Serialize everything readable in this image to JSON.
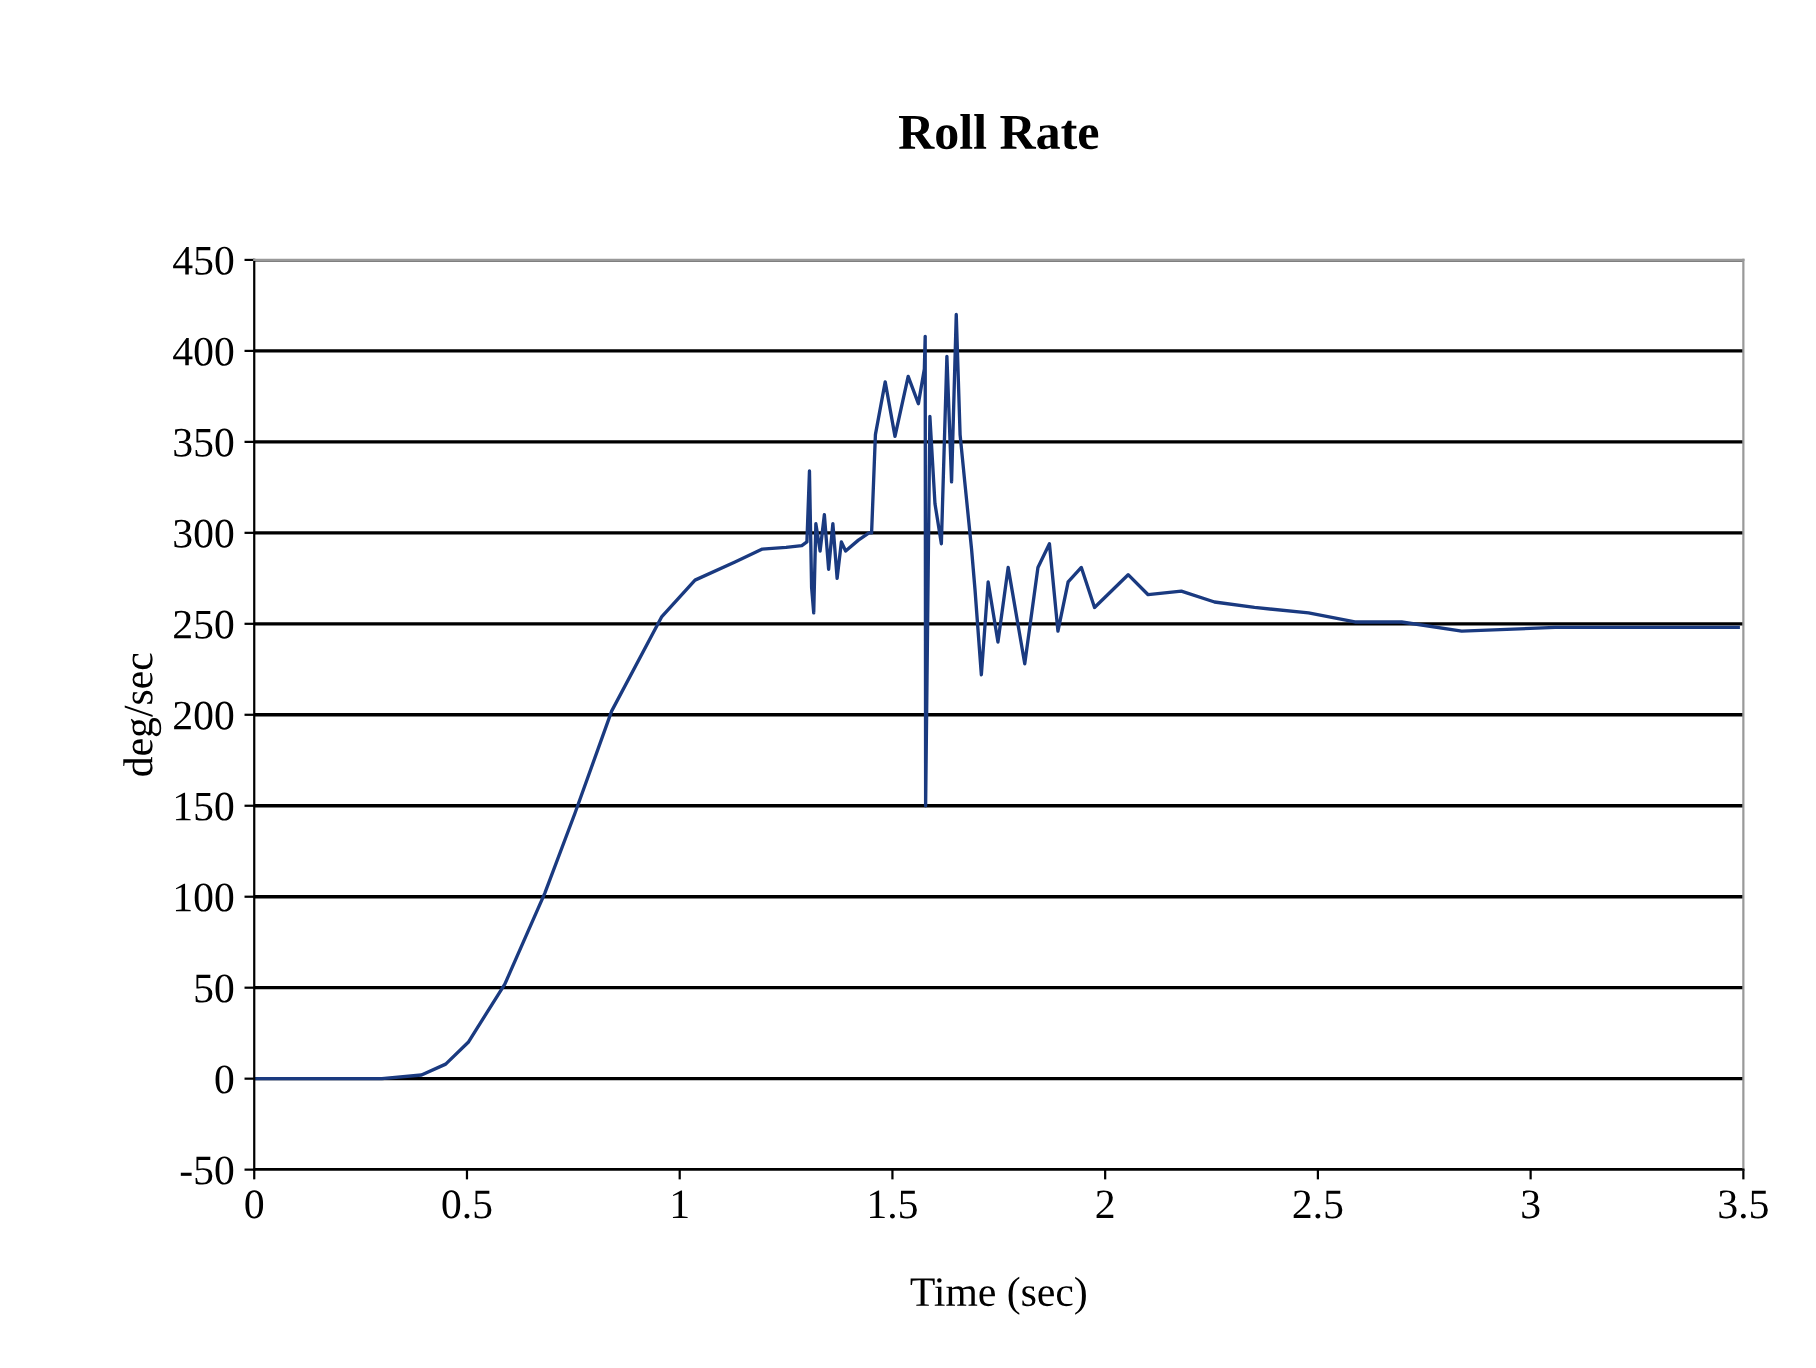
{
  "chart_data": {
    "type": "line",
    "title": "Roll Rate",
    "xlabel": "Time (sec)",
    "ylabel": "deg/sec",
    "xlim": [
      0,
      3.5
    ],
    "xticks": [
      0,
      0.5,
      1,
      1.5,
      2,
      2.5,
      3,
      3.5
    ],
    "ylim": [
      -50,
      450
    ],
    "yticks": [
      -50,
      0,
      50,
      100,
      150,
      200,
      250,
      300,
      350,
      400,
      450
    ],
    "grid": "y",
    "marker": "none",
    "line_style": "solid",
    "series": [
      {
        "color": "#1a3a80",
        "x": [
          0,
          0.1,
          0.2,
          0.3,
          0.393,
          0.45,
          0.503,
          0.589,
          0.683,
          0.754,
          0.84,
          0.958,
          1.036,
          1.13,
          1.193,
          1.25,
          1.287,
          1.299,
          1.305,
          1.31,
          1.315,
          1.32,
          1.33,
          1.34,
          1.35,
          1.36,
          1.37,
          1.38,
          1.39,
          1.42,
          1.445,
          1.451,
          1.46,
          1.483,
          1.506,
          1.537,
          1.561,
          1.575,
          1.577,
          1.578,
          1.588,
          1.6,
          1.615,
          1.628,
          1.639,
          1.65,
          1.659,
          1.67,
          1.686,
          1.694,
          1.709,
          1.725,
          1.748,
          1.772,
          1.811,
          1.842,
          1.869,
          1.889,
          1.913,
          1.944,
          1.975,
          2.054,
          2.101,
          2.179,
          2.257,
          2.351,
          2.478,
          2.587,
          2.697,
          2.838,
          3.058,
          3.293,
          3.488
        ],
        "values": [
          0,
          0,
          0,
          0,
          2,
          8,
          20,
          52,
          102,
          146,
          202,
          254,
          274,
          284,
          291,
          292,
          293,
          295,
          334,
          270,
          256,
          305,
          290,
          310,
          280,
          305,
          275,
          295,
          290,
          296,
          300,
          300,
          354,
          383,
          353,
          386,
          371,
          390,
          408,
          150,
          364,
          316,
          294,
          397,
          328,
          420,
          354,
          328,
          291,
          269,
          222,
          273,
          240,
          281,
          228,
          281,
          294,
          246,
          273,
          281,
          259,
          277,
          266,
          268,
          262,
          259,
          256,
          251,
          251,
          246,
          248,
          248,
          248
        ]
      }
    ]
  }
}
